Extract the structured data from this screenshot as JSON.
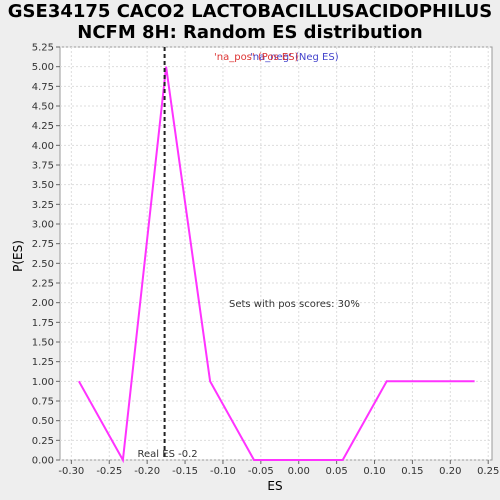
{
  "chart_data": {
    "type": "line",
    "title_lines": [
      "GSE34175 CACO2 LACTOBACILLUSACIDOPHILUS",
      "NCFM 8H: Random ES distribution"
    ],
    "xlabel": "ES",
    "ylabel": "P(ES)",
    "xlim": [
      -0.315,
      0.255
    ],
    "ylim": [
      0,
      5.25
    ],
    "x_ticks": [
      "-0.30",
      "-0.25",
      "-0.20",
      "-0.15",
      "-0.10",
      "-0.05",
      "0.00",
      "0.05",
      "0.10",
      "0.15",
      "0.20",
      "0.25"
    ],
    "x_tick_values": [
      -0.3,
      -0.25,
      -0.2,
      -0.15,
      -0.1,
      -0.05,
      0.0,
      0.05,
      0.1,
      0.15,
      0.2,
      0.25
    ],
    "y_ticks": [
      "0.00",
      "0.25",
      "0.50",
      "0.75",
      "1.00",
      "1.25",
      "1.50",
      "1.75",
      "2.00",
      "2.25",
      "2.50",
      "2.75",
      "3.00",
      "3.25",
      "3.50",
      "3.75",
      "4.00",
      "4.25",
      "4.50",
      "4.75",
      "5.00",
      "5.25"
    ],
    "y_tick_values": [
      0,
      0.25,
      0.5,
      0.75,
      1.0,
      1.25,
      1.5,
      1.75,
      2.0,
      2.25,
      2.5,
      2.75,
      3.0,
      3.25,
      3.5,
      3.75,
      4.0,
      4.25,
      4.5,
      4.75,
      5.0,
      5.25
    ],
    "grid": true,
    "series": [
      {
        "color": "#ff33ff",
        "x": [
          -0.29,
          -0.232,
          -0.175,
          -0.117,
          -0.059,
          0.0,
          0.058,
          0.116,
          0.174,
          0.232
        ],
        "y": [
          1.0,
          0.0,
          5.0,
          1.0,
          0.0,
          0.0,
          0.0,
          1.0,
          1.0,
          1.0
        ]
      }
    ],
    "real_es": -0.177,
    "real_es_label": "Real ES -0.2",
    "legend": {
      "pos_label": "'na_pos' (Pos ES)",
      "neg_label": "'na_neg' (Neg ES)",
      "pos_color": "#dd3333",
      "neg_color": "#4444cc"
    },
    "annotation": "Sets with pos scores: 30%"
  }
}
